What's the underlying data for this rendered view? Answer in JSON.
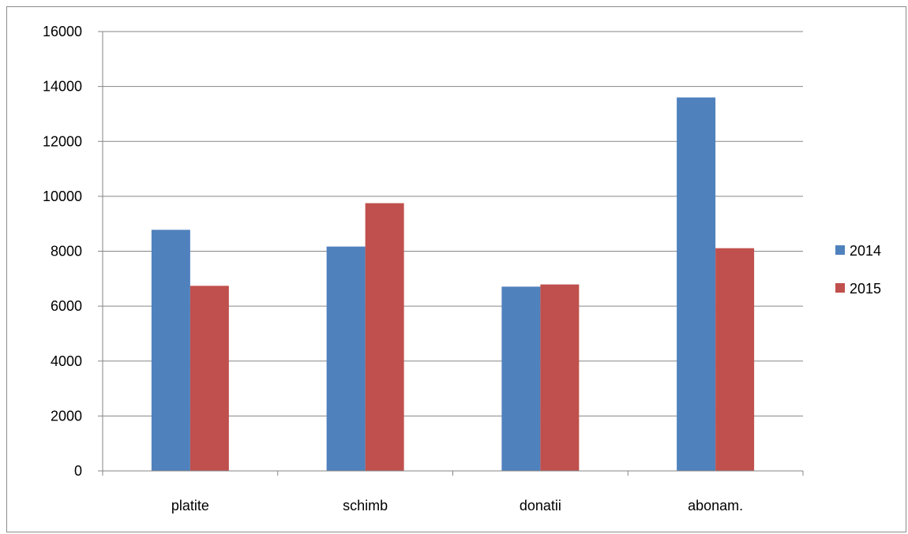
{
  "chart_data": {
    "type": "bar",
    "title": "",
    "xlabel": "",
    "ylabel": "",
    "categories": [
      "platite",
      "schimb",
      "donatii",
      "abonam."
    ],
    "series": [
      {
        "name": "2014",
        "values": [
          8780,
          8170,
          6710,
          13600
        ],
        "color": "#4f81bd"
      },
      {
        "name": "2015",
        "values": [
          6740,
          9750,
          6790,
          8110
        ],
        "color": "#c0504d"
      }
    ],
    "ylim": [
      0,
      16000
    ],
    "yticks": [
      0,
      2000,
      4000,
      6000,
      8000,
      10000,
      12000,
      14000,
      16000
    ],
    "grid": true,
    "legend": "right"
  }
}
